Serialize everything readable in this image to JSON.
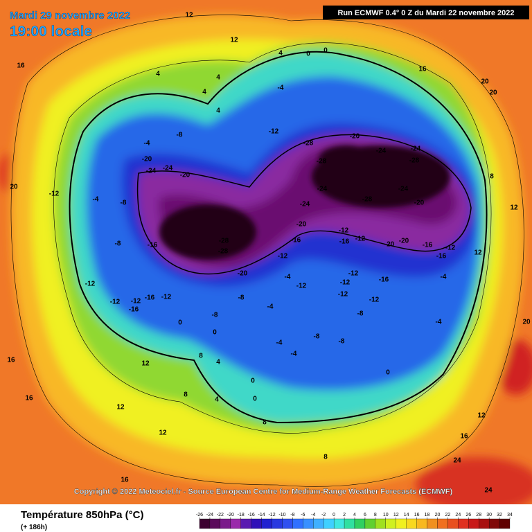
{
  "header": {
    "date": "Mardi 29 novembre 2022",
    "time": "19:00 locale",
    "run": "Run ECMWF 0.4° 0 Z du Mardi 22 novembre 2022"
  },
  "copyright": "Copyright © 2022 Meteociel.fr - Source European Centre for Medium-Range Weather Forecasts (ECMWF)",
  "legend": {
    "title": "Température 850hPa (°C)",
    "lead": "(+ 186h)",
    "scale": [
      -26,
      -24,
      -22,
      -20,
      -18,
      -16,
      -14,
      -12,
      -10,
      -8,
      -6,
      -4,
      -2,
      0,
      2,
      4,
      6,
      8,
      10,
      12,
      14,
      16,
      18,
      20,
      22,
      24,
      26,
      28,
      30,
      32,
      34
    ]
  },
  "contour_labels": [
    12,
    12,
    4,
    0,
    0,
    16,
    20,
    16,
    4,
    4,
    4,
    4,
    -12,
    -28,
    -20,
    -24,
    -24,
    -28,
    -28,
    -24,
    -28,
    -24,
    -24,
    -20,
    -20,
    -28,
    -28,
    -16,
    -16,
    -12,
    -16,
    -12,
    -20,
    -20,
    -16,
    -12,
    -16,
    -12,
    -20,
    -12,
    -16,
    -12,
    -12,
    -12,
    -12,
    -8,
    -8,
    -4,
    -8,
    -4,
    -20,
    -24,
    -24,
    -20,
    -12,
    -12,
    -12,
    -12,
    -16,
    -12,
    -16,
    -8,
    -4,
    -8,
    -8,
    -4,
    -8,
    -8,
    -4,
    -4,
    -4,
    -4,
    0,
    0,
    0,
    0,
    0,
    4,
    4,
    8,
    8,
    8,
    8,
    12,
    12,
    12,
    12,
    12,
    12,
    16,
    16,
    16,
    16,
    20,
    20,
    20,
    24,
    24,
    8,
    -4
  ]
}
